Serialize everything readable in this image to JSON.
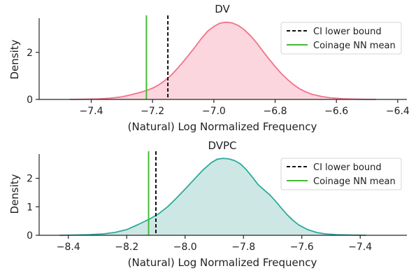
{
  "chart_data": [
    {
      "type": "area",
      "title": "DV",
      "xlabel": "(Natural) Log Normalized Frequency",
      "ylabel": "Density",
      "xlim": [
        -7.57,
        -6.37
      ],
      "ylim": [
        0,
        3.45
      ],
      "x_ticks": [
        -7.4,
        -7.2,
        -7.0,
        -6.8,
        -6.6,
        -6.4
      ],
      "x_tick_labels": [
        "−7.4",
        "−7.2",
        "−7.0",
        "−6.8",
        "−6.6",
        "−6.4"
      ],
      "y_ticks": [
        0,
        2
      ],
      "y_tick_labels": [
        "0",
        "2"
      ],
      "density": {
        "color": "#f2738a",
        "fill": "#fbd6de",
        "points": [
          [
            -7.47,
            0.0
          ],
          [
            -7.42,
            0.01
          ],
          [
            -7.38,
            0.02
          ],
          [
            -7.34,
            0.05
          ],
          [
            -7.3,
            0.11
          ],
          [
            -7.27,
            0.2
          ],
          [
            -7.24,
            0.3
          ],
          [
            -7.22,
            0.38
          ],
          [
            -7.2,
            0.48
          ],
          [
            -7.18,
            0.62
          ],
          [
            -7.16,
            0.8
          ],
          [
            -7.14,
            1.02
          ],
          [
            -7.12,
            1.3
          ],
          [
            -7.1,
            1.6
          ],
          [
            -7.08,
            1.92
          ],
          [
            -7.06,
            2.25
          ],
          [
            -7.04,
            2.6
          ],
          [
            -7.02,
            2.9
          ],
          [
            -7.0,
            3.1
          ],
          [
            -6.98,
            3.24
          ],
          [
            -6.96,
            3.28
          ],
          [
            -6.94,
            3.25
          ],
          [
            -6.92,
            3.14
          ],
          [
            -6.9,
            2.95
          ],
          [
            -6.88,
            2.7
          ],
          [
            -6.86,
            2.4
          ],
          [
            -6.84,
            2.05
          ],
          [
            -6.82,
            1.72
          ],
          [
            -6.8,
            1.4
          ],
          [
            -6.78,
            1.1
          ],
          [
            -6.76,
            0.85
          ],
          [
            -6.74,
            0.63
          ],
          [
            -6.72,
            0.45
          ],
          [
            -6.7,
            0.32
          ],
          [
            -6.68,
            0.22
          ],
          [
            -6.65,
            0.13
          ],
          [
            -6.62,
            0.07
          ],
          [
            -6.58,
            0.03
          ],
          [
            -6.53,
            0.01
          ],
          [
            -6.47,
            0.0
          ]
        ]
      },
      "vlines": [
        {
          "name": "CI lower bound",
          "x": -7.15,
          "color": "#111111",
          "style": "dashed"
        },
        {
          "name": "Coinage NN mean",
          "x": -7.22,
          "color": "#44bb33",
          "style": "solid"
        }
      ],
      "legend_position": "upper right"
    },
    {
      "type": "area",
      "title": "DVPC",
      "xlabel": "(Natural) Log Normalized Frequency",
      "ylabel": "Density",
      "xlim": [
        -8.5,
        -7.24
      ],
      "ylim": [
        0,
        2.85
      ],
      "x_ticks": [
        -8.4,
        -8.2,
        -8.0,
        -7.8,
        -7.6,
        -7.4
      ],
      "x_tick_labels": [
        "−8.4",
        "−8.2",
        "−8.0",
        "−7.8",
        "−7.6",
        "−7.4"
      ],
      "y_ticks": [
        0,
        1,
        2
      ],
      "y_tick_labels": [
        "0",
        "1",
        "2"
      ],
      "density": {
        "color": "#2aab9f",
        "fill": "#cde8e4",
        "points": [
          [
            -8.43,
            0.0
          ],
          [
            -8.38,
            0.01
          ],
          [
            -8.33,
            0.02
          ],
          [
            -8.28,
            0.05
          ],
          [
            -8.24,
            0.1
          ],
          [
            -8.2,
            0.2
          ],
          [
            -8.16,
            0.38
          ],
          [
            -8.12,
            0.58
          ],
          [
            -8.09,
            0.76
          ],
          [
            -8.06,
            1.0
          ],
          [
            -8.03,
            1.3
          ],
          [
            -8.0,
            1.62
          ],
          [
            -7.97,
            1.95
          ],
          [
            -7.94,
            2.28
          ],
          [
            -7.91,
            2.55
          ],
          [
            -7.89,
            2.67
          ],
          [
            -7.87,
            2.7
          ],
          [
            -7.85,
            2.68
          ],
          [
            -7.83,
            2.62
          ],
          [
            -7.81,
            2.5
          ],
          [
            -7.79,
            2.3
          ],
          [
            -7.77,
            2.05
          ],
          [
            -7.75,
            1.78
          ],
          [
            -7.73,
            1.6
          ],
          [
            -7.71,
            1.42
          ],
          [
            -7.69,
            1.2
          ],
          [
            -7.67,
            0.95
          ],
          [
            -7.65,
            0.72
          ],
          [
            -7.63,
            0.52
          ],
          [
            -7.61,
            0.36
          ],
          [
            -7.58,
            0.2
          ],
          [
            -7.55,
            0.1
          ],
          [
            -7.52,
            0.05
          ],
          [
            -7.48,
            0.02
          ],
          [
            -7.43,
            0.01
          ],
          [
            -7.38,
            0.0
          ]
        ]
      },
      "vlines": [
        {
          "name": "CI lower bound",
          "x": -8.1,
          "color": "#111111",
          "style": "dashed"
        },
        {
          "name": "Coinage NN mean",
          "x": -8.125,
          "color": "#44bb33",
          "style": "solid"
        }
      ],
      "legend_position": "upper right"
    }
  ]
}
